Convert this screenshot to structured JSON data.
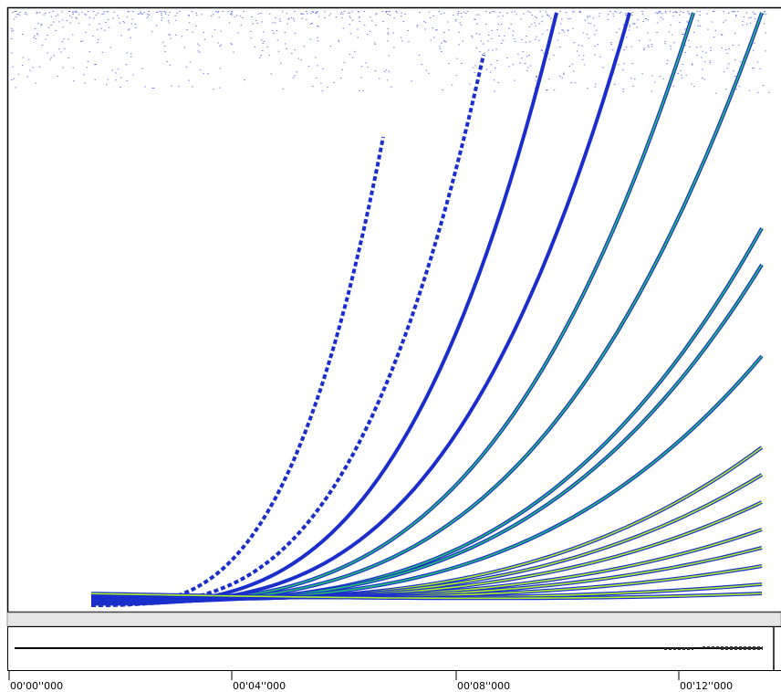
{
  "timeline": {
    "labels": [
      "00'00''000",
      "00'04''000",
      "00'08''000",
      "00'12''000"
    ]
  }
}
